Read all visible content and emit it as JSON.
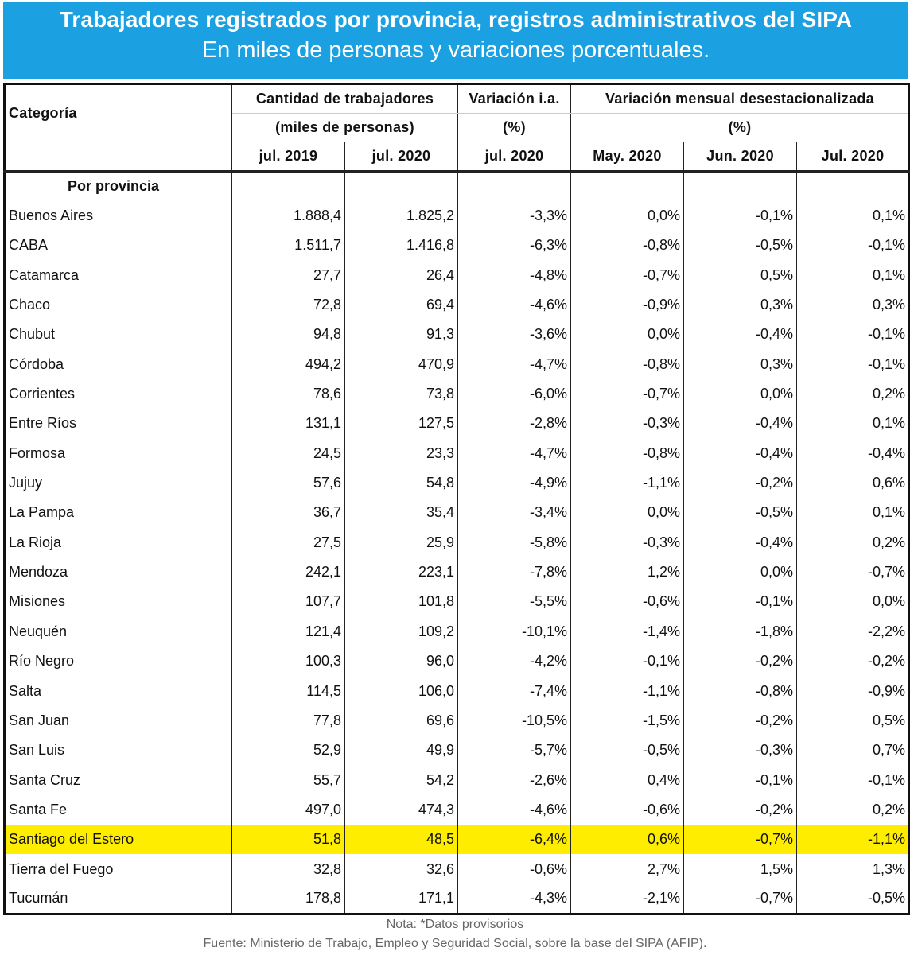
{
  "header": {
    "title": "Trabajadores registrados por provincia, registros administrativos del SIPA",
    "subtitle": "En miles de personas y variaciones porcentuales."
  },
  "colors": {
    "banner": "#1ba1e2",
    "highlight": "#ffed00"
  },
  "table": {
    "category_label": "Categoría",
    "group1_label": "Cantidad de trabajadores",
    "group1_unit": "(miles de personas)",
    "group2_label": "Variación i.a.",
    "group2_unit": "(%)",
    "group3_label": "Variación mensual desestacionalizada",
    "group3_unit": "(%)",
    "columns": [
      "jul. 2019",
      "jul. 2020",
      "jul. 2020",
      "May. 2020",
      "Jun. 2020",
      "Jul. 2020"
    ],
    "section_label": "Por provincia",
    "highlighted_row": "Santiago del Estero"
  },
  "chart_data": {
    "type": "table",
    "title": "Trabajadores registrados por provincia, registros administrativos del SIPA",
    "rows": [
      [
        "Buenos Aires",
        "1.888,4",
        "1.825,2",
        "-3,3%",
        "0,0%",
        "-0,1%",
        "0,1%"
      ],
      [
        "CABA",
        "1.511,7",
        "1.416,8",
        "-6,3%",
        "-0,8%",
        "-0,5%",
        "-0,1%"
      ],
      [
        "Catamarca",
        "27,7",
        "26,4",
        "-4,8%",
        "-0,7%",
        "0,5%",
        "0,1%"
      ],
      [
        "Chaco",
        "72,8",
        "69,4",
        "-4,6%",
        "-0,9%",
        "0,3%",
        "0,3%"
      ],
      [
        "Chubut",
        "94,8",
        "91,3",
        "-3,6%",
        "0,0%",
        "-0,4%",
        "-0,1%"
      ],
      [
        "Córdoba",
        "494,2",
        "470,9",
        "-4,7%",
        "-0,8%",
        "0,3%",
        "-0,1%"
      ],
      [
        "Corrientes",
        "78,6",
        "73,8",
        "-6,0%",
        "-0,7%",
        "0,0%",
        "0,2%"
      ],
      [
        "Entre Ríos",
        "131,1",
        "127,5",
        "-2,8%",
        "-0,3%",
        "-0,4%",
        "0,1%"
      ],
      [
        "Formosa",
        "24,5",
        "23,3",
        "-4,7%",
        "-0,8%",
        "-0,4%",
        "-0,4%"
      ],
      [
        "Jujuy",
        "57,6",
        "54,8",
        "-4,9%",
        "-1,1%",
        "-0,2%",
        "0,6%"
      ],
      [
        "La Pampa",
        "36,7",
        "35,4",
        "-3,4%",
        "0,0%",
        "-0,5%",
        "0,1%"
      ],
      [
        "La Rioja",
        "27,5",
        "25,9",
        "-5,8%",
        "-0,3%",
        "-0,4%",
        "0,2%"
      ],
      [
        "Mendoza",
        "242,1",
        "223,1",
        "-7,8%",
        "1,2%",
        "0,0%",
        "-0,7%"
      ],
      [
        "Misiones",
        "107,7",
        "101,8",
        "-5,5%",
        "-0,6%",
        "-0,1%",
        "0,0%"
      ],
      [
        "Neuquén",
        "121,4",
        "109,2",
        "-10,1%",
        "-1,4%",
        "-1,8%",
        "-2,2%"
      ],
      [
        "Río Negro",
        "100,3",
        "96,0",
        "-4,2%",
        "-0,1%",
        "-0,2%",
        "-0,2%"
      ],
      [
        "Salta",
        "114,5",
        "106,0",
        "-7,4%",
        "-1,1%",
        "-0,8%",
        "-0,9%"
      ],
      [
        "San Juan",
        "77,8",
        "69,6",
        "-10,5%",
        "-1,5%",
        "-0,2%",
        "0,5%"
      ],
      [
        "San Luis",
        "52,9",
        "49,9",
        "-5,7%",
        "-0,5%",
        "-0,3%",
        "0,7%"
      ],
      [
        "Santa Cruz",
        "55,7",
        "54,2",
        "-2,6%",
        "0,4%",
        "-0,1%",
        "-0,1%"
      ],
      [
        "Santa Fe",
        "497,0",
        "474,3",
        "-4,6%",
        "-0,6%",
        "-0,2%",
        "0,2%"
      ],
      [
        "Santiago del Estero",
        "51,8",
        "48,5",
        "-6,4%",
        "0,6%",
        "-0,7%",
        "-1,1%"
      ],
      [
        "Tierra del Fuego",
        "32,8",
        "32,6",
        "-0,6%",
        "2,7%",
        "1,5%",
        "1,3%"
      ],
      [
        "Tucumán",
        "178,8",
        "171,1",
        "-4,3%",
        "-2,1%",
        "-0,7%",
        "-0,5%"
      ]
    ]
  },
  "footer": {
    "note": "Nota: *Datos provisorios",
    "source": "Fuente: Ministerio de Trabajo, Empleo y Seguridad Social, sobre la base del SIPA (AFIP)."
  }
}
